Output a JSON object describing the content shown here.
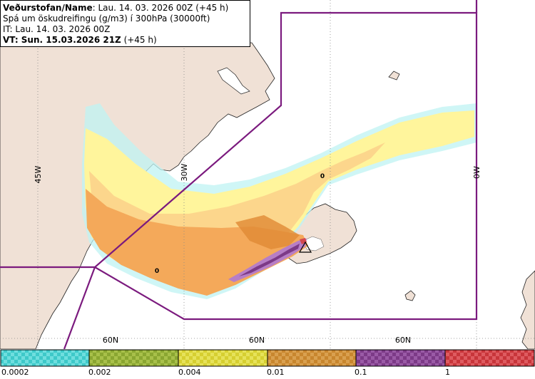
{
  "header": {
    "line1_label": "Veðurstofan/Name",
    "line1_value": ": Lau. 14. 03. 2026 00Z (+45 h)",
    "line2": "Spá um öskudreifingu (g/m3) í 300hPa (30000ft)",
    "line3": "IT: Lau. 14. 03. 2026 00Z",
    "line4_label": "VT: Sun. 15.03.2026 21Z",
    "line4_value": " (+45 h)"
  },
  "map": {
    "longitude_labels": [
      "45W",
      "30W",
      "0W"
    ],
    "latitude_labels": [
      "60N",
      "60N",
      "60N"
    ],
    "contour_labels": [
      "0",
      "0"
    ],
    "colors": {
      "land": "#f0e1d6",
      "sea": "#ffffff",
      "boundary": "#7b1a7e",
      "gridline": "#888888"
    }
  },
  "legend": {
    "tick_labels": [
      "0.0002",
      "0.002",
      "0.004",
      "0.01",
      "0.1",
      "1"
    ],
    "bins": [
      {
        "from": "0.0002",
        "to": "0.002",
        "color": "#3ec9c9"
      },
      {
        "from": "0.002",
        "to": "0.004",
        "color": "#8aa631"
      },
      {
        "from": "0.004",
        "to": "0.01",
        "color": "#d6cf30"
      },
      {
        "from": "0.01",
        "to": "0.1",
        "color": "#c8862e"
      },
      {
        "from": "0.1",
        "to": "1",
        "color": "#7c3a87"
      },
      {
        "from": "1",
        "to": "",
        "color": "#c8353a"
      }
    ]
  }
}
